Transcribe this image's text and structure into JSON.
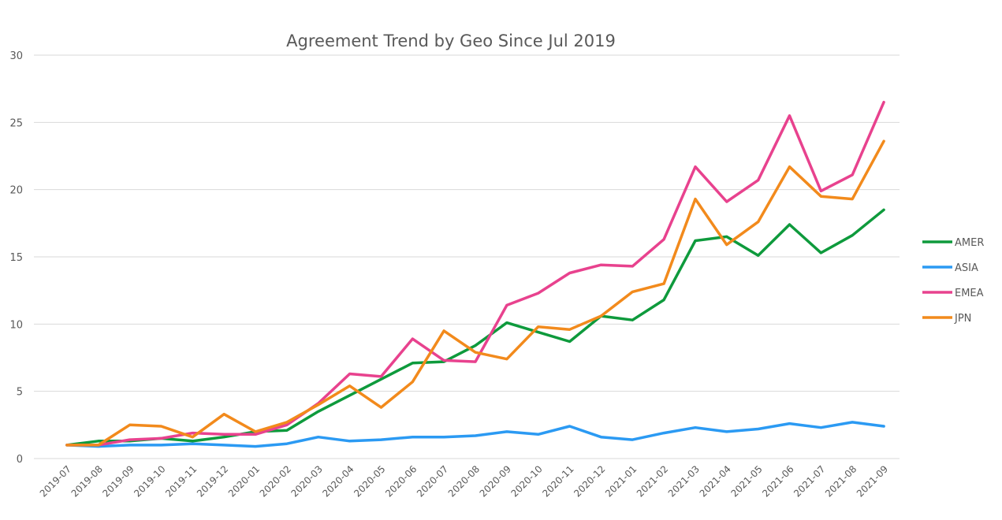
{
  "chart_data": {
    "type": "line",
    "title": "Agreement Trend by Geo Since Jul 2019",
    "xlabel": "",
    "ylabel": "",
    "ylim": [
      0,
      30
    ],
    "yticks": [
      0,
      5,
      10,
      15,
      20,
      25,
      30
    ],
    "grid": true,
    "legend_position": "right",
    "categories": [
      "2019-07",
      "2019-08",
      "2019-09",
      "2019-10",
      "2019-11",
      "2019-12",
      "2020-01",
      "2020-02",
      "2020-03",
      "2020-04",
      "2020-05",
      "2020-06",
      "2020-07",
      "2020-08",
      "2020-09",
      "2020-10",
      "2020-11",
      "2020-12",
      "2021-01",
      "2021-02",
      "2021-03",
      "2021-04",
      "2021-05",
      "2021-06",
      "2021-07",
      "2021-08",
      "2021-09"
    ],
    "series": [
      {
        "name": "AMER",
        "color": "#0e9a3c",
        "values": [
          1.0,
          1.3,
          1.3,
          1.5,
          1.3,
          1.6,
          2.0,
          2.1,
          3.5,
          4.7,
          5.9,
          7.1,
          7.2,
          8.4,
          10.1,
          9.4,
          8.7,
          10.6,
          10.3,
          11.8,
          16.2,
          16.5,
          15.1,
          17.4,
          15.3,
          16.6,
          18.5
        ]
      },
      {
        "name": "ASIA",
        "color": "#2b9af3",
        "values": [
          1.0,
          0.9,
          1.0,
          1.0,
          1.1,
          1.0,
          0.9,
          1.1,
          1.6,
          1.3,
          1.4,
          1.6,
          1.6,
          1.7,
          2.0,
          1.8,
          2.4,
          1.6,
          1.4,
          1.9,
          2.3,
          2.0,
          2.2,
          2.6,
          2.3,
          2.7,
          2.4
        ]
      },
      {
        "name": "EMEA",
        "color": "#e8428e",
        "values": [
          1.0,
          1.0,
          1.4,
          1.5,
          1.9,
          1.8,
          1.8,
          2.5,
          4.1,
          6.3,
          6.1,
          8.9,
          7.3,
          7.2,
          11.4,
          12.3,
          13.8,
          14.4,
          14.3,
          16.3,
          21.7,
          19.1,
          20.7,
          25.5,
          19.9,
          21.1,
          26.5
        ]
      },
      {
        "name": "JPN",
        "color": "#f28a1c",
        "values": [
          1.0,
          1.0,
          2.5,
          2.4,
          1.6,
          3.3,
          2.0,
          2.7,
          4.0,
          5.4,
          3.8,
          5.7,
          9.5,
          7.9,
          7.4,
          9.8,
          9.6,
          10.6,
          12.4,
          13.0,
          19.3,
          15.9,
          17.6,
          21.7,
          19.5,
          19.3,
          23.6
        ]
      }
    ]
  }
}
